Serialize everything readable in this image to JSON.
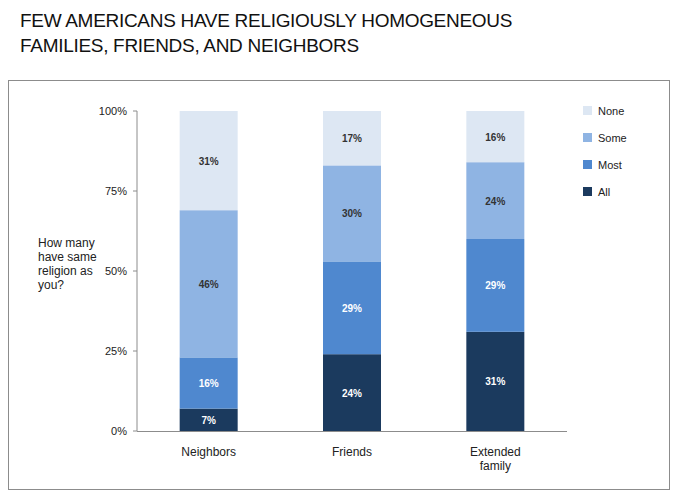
{
  "chart_data": {
    "type": "bar",
    "title": "FEW AMERICANS HAVE RELIGIOUSLY HOMOGENEOUS FAMILIES, FRIENDS, AND NEIGHBORS",
    "y_label": "How many have same religion as you?",
    "categories": [
      "Neighbors",
      "Friends",
      "Extended family"
    ],
    "series": [
      {
        "name": "All",
        "color": "#1b3a5e",
        "values": [
          7,
          24,
          31
        ],
        "value_labels": [
          "7%",
          "24%",
          "31%"
        ]
      },
      {
        "name": "Most",
        "color": "#4f88cf",
        "values": [
          16,
          29,
          29
        ],
        "value_labels": [
          "16%",
          "29%",
          "29%"
        ]
      },
      {
        "name": "Some",
        "color": "#8fb4e3",
        "values": [
          46,
          30,
          24
        ],
        "value_labels": [
          "46%",
          "30%",
          "24%"
        ]
      },
      {
        "name": "None",
        "color": "#dde7f3",
        "values": [
          31,
          17,
          16
        ],
        "value_labels": [
          "31%",
          "17%",
          "16%"
        ]
      }
    ],
    "ylim": [
      0,
      100
    ],
    "yticks": [
      {
        "value": 0,
        "label": "0%"
      },
      {
        "value": 25,
        "label": "25%"
      },
      {
        "value": 50,
        "label": "50%"
      },
      {
        "value": 75,
        "label": "75%"
      },
      {
        "value": 100,
        "label": "100%"
      }
    ],
    "stacked": true,
    "data_labels": true,
    "grid": false,
    "legend": "right"
  }
}
